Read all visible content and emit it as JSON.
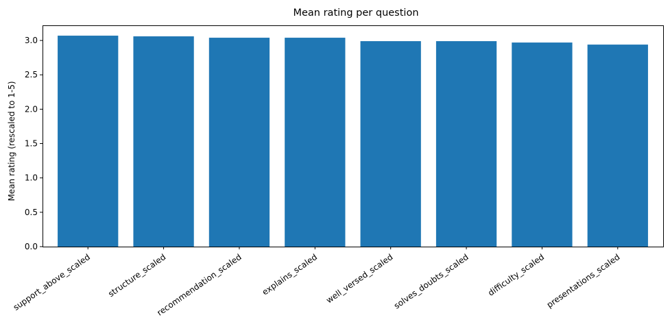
{
  "chart_data": {
    "type": "bar",
    "title": "Mean rating per question",
    "xlabel": "",
    "ylabel": "Mean rating (rescaled to 1-5)",
    "categories": [
      "support_above_scaled",
      "structure_scaled",
      "recommendation_scaled",
      "explains_scaled",
      "well_versed_scaled",
      "solves_doubts_scaled",
      "difficulty_scaled",
      "presentations_scaled"
    ],
    "values": [
      3.07,
      3.06,
      3.04,
      3.04,
      2.99,
      2.99,
      2.97,
      2.94
    ],
    "ylim": [
      0,
      3.22
    ],
    "yticks": [
      "0.0",
      "0.5",
      "1.0",
      "1.5",
      "2.0",
      "2.5",
      "3.0"
    ],
    "grid": false,
    "bar_color": "#1f77b4"
  }
}
